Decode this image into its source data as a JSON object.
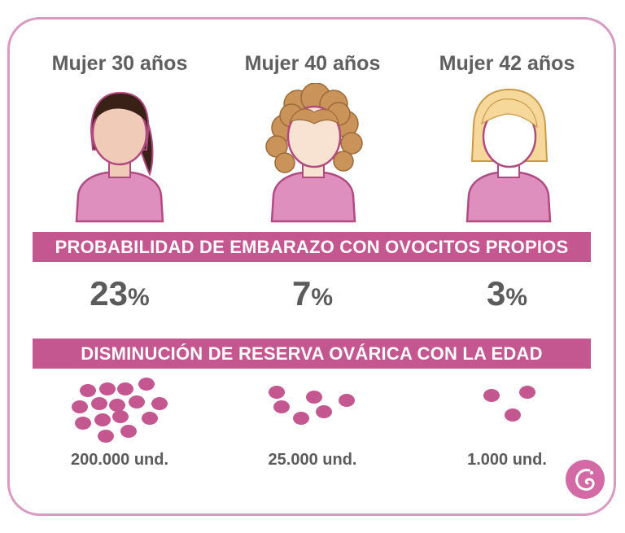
{
  "columns": [
    {
      "title": "Mujer 30 años",
      "percent_value": "23",
      "percent_symbol": "%",
      "units": "200.000 und.",
      "hair": "dark-ponytail"
    },
    {
      "title": "Mujer 40 años",
      "percent_value": "7",
      "percent_symbol": "%",
      "units": "25.000 und.",
      "hair": "curly-light-brown"
    },
    {
      "title": "Mujer 42 años",
      "percent_value": "3",
      "percent_symbol": "%",
      "units": "1.000 und.",
      "hair": "blonde-bob"
    }
  ],
  "band_probability": "PROBABILIDAD DE EMBARAZO CON OVOCITOS PROPIOS",
  "band_reserve": "DISMINUCIÓN DE RESERVA OVÁRICA CON LA EDAD",
  "colors": {
    "accent": "#c45690",
    "border": "#d89ac0",
    "shirt": "#de8fbd",
    "skin": "#f0cbb7",
    "egg": "#c45690",
    "text": "#5b5b5b"
  },
  "icons": [
    "woman-30-icon",
    "woman-40-icon",
    "woman-42-icon",
    "egg-cell-icon",
    "brand-logo-icon"
  ]
}
